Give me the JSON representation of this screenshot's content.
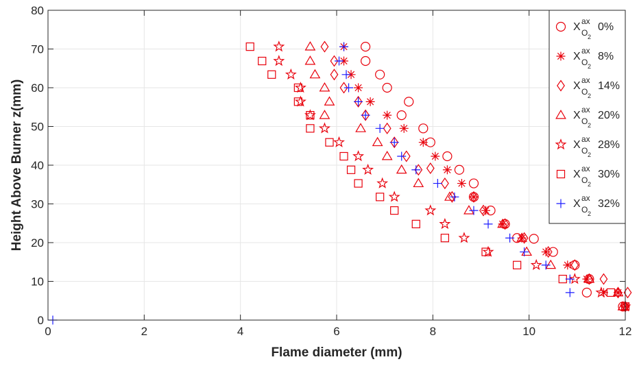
{
  "chart_data": {
    "type": "scatter",
    "xlabel": "Flame diameter (mm)",
    "ylabel": "Height Above Burner z(mm)",
    "xlim": [
      0,
      12
    ],
    "ylim": [
      0,
      80
    ],
    "xticks": [
      "0",
      "2",
      "4",
      "6",
      "8",
      "10",
      "12"
    ],
    "yticks": [
      "0",
      "10",
      "20",
      "30",
      "40",
      "50",
      "60",
      "70",
      "80"
    ],
    "grid": true,
    "legend_position": "top-right",
    "legend_symbol_base": "X",
    "legend_symbol_sup": "ax",
    "legend_symbol_sub": "O",
    "legend_symbol_sub2": "2",
    "series": [
      {
        "name": "0%",
        "marker": "circle",
        "color": "#e8000b",
        "points": [
          [
            6.6,
            70.6
          ],
          [
            6.6,
            66.9
          ],
          [
            6.9,
            63.4
          ],
          [
            7.05,
            60
          ],
          [
            7.5,
            56.4
          ],
          [
            7.35,
            52.9
          ],
          [
            7.8,
            49.5
          ],
          [
            7.95,
            45.9
          ],
          [
            8.3,
            42.3
          ],
          [
            8.55,
            38.8
          ],
          [
            8.85,
            35.3
          ],
          [
            8.85,
            31.8
          ],
          [
            9.2,
            28.3
          ],
          [
            9.5,
            24.8
          ],
          [
            9.75,
            21.2
          ],
          [
            10.1,
            21
          ],
          [
            10.5,
            17.6
          ],
          [
            10.95,
            14.2
          ],
          [
            11.25,
            10.6
          ],
          [
            11.2,
            7.1
          ],
          [
            11.95,
            3.5
          ]
        ]
      },
      {
        "name": "8%",
        "marker": "asterisk",
        "color": "#e8000b",
        "points": [
          [
            6.15,
            70.6
          ],
          [
            6.15,
            66.9
          ],
          [
            6.3,
            63.4
          ],
          [
            6.45,
            60
          ],
          [
            6.7,
            56.4
          ],
          [
            7.05,
            52.9
          ],
          [
            7.4,
            49.5
          ],
          [
            7.8,
            45.9
          ],
          [
            8.05,
            42.3
          ],
          [
            8.3,
            38.8
          ],
          [
            8.6,
            35.3
          ],
          [
            8.85,
            31.8
          ],
          [
            9.1,
            28.3
          ],
          [
            9.45,
            24.8
          ],
          [
            9.85,
            21.2
          ],
          [
            10.35,
            17.6
          ],
          [
            10.8,
            14.2
          ],
          [
            11.2,
            10.6
          ],
          [
            11.55,
            7.1
          ],
          [
            11.85,
            7.1
          ],
          [
            12,
            3.5
          ]
        ]
      },
      {
        "name": "14%",
        "marker": "diamond",
        "color": "#e8000b",
        "points": [
          [
            5.75,
            70.6
          ],
          [
            5.95,
            66.9
          ],
          [
            5.95,
            63.4
          ],
          [
            6.15,
            60
          ],
          [
            6.45,
            56.4
          ],
          [
            6.6,
            52.9
          ],
          [
            7.05,
            49.5
          ],
          [
            7.2,
            45.9
          ],
          [
            7.45,
            42.3
          ],
          [
            7.7,
            38.8
          ],
          [
            7.95,
            39.2
          ],
          [
            8.25,
            35.3
          ],
          [
            8.4,
            31.8
          ],
          [
            8.85,
            31.8
          ],
          [
            9.05,
            28.3
          ],
          [
            9.5,
            24.8
          ],
          [
            9.9,
            21.2
          ],
          [
            10.4,
            17.6
          ],
          [
            10.95,
            14.2
          ],
          [
            11.25,
            10.6
          ],
          [
            11.55,
            10.6
          ],
          [
            11.85,
            7.1
          ],
          [
            12.05,
            7.1
          ],
          [
            12,
            3.5
          ]
        ]
      },
      {
        "name": "20%",
        "marker": "triangle",
        "color": "#e8000b",
        "points": [
          [
            5.45,
            70.6
          ],
          [
            5.45,
            66.9
          ],
          [
            5.55,
            63.4
          ],
          [
            5.75,
            60
          ],
          [
            5.85,
            56.4
          ],
          [
            5.75,
            52.9
          ],
          [
            6.5,
            49.5
          ],
          [
            6.85,
            45.9
          ],
          [
            7.05,
            42.3
          ],
          [
            7.35,
            38.8
          ],
          [
            7.7,
            35.3
          ],
          [
            8.35,
            31.8
          ],
          [
            8.75,
            28.3
          ],
          [
            9.45,
            24.8
          ],
          [
            9.85,
            21.2
          ],
          [
            9.95,
            17.6
          ],
          [
            10.45,
            14.2
          ],
          [
            11.25,
            10.6
          ],
          [
            11.85,
            7.1
          ],
          [
            11.95,
            3.5
          ]
        ]
      },
      {
        "name": "28%",
        "marker": "star",
        "color": "#e8000b",
        "points": [
          [
            4.8,
            70.6
          ],
          [
            4.8,
            66.9
          ],
          [
            5.05,
            63.4
          ],
          [
            5.25,
            60
          ],
          [
            5.25,
            56.4
          ],
          [
            5.45,
            52.9
          ],
          [
            5.75,
            49.5
          ],
          [
            6.05,
            45.9
          ],
          [
            6.45,
            42.3
          ],
          [
            6.65,
            38.8
          ],
          [
            6.95,
            35.3
          ],
          [
            7.2,
            31.8
          ],
          [
            7.95,
            28.3
          ],
          [
            8.25,
            24.8
          ],
          [
            8.65,
            21.2
          ],
          [
            9.15,
            17.6
          ],
          [
            10.15,
            14.2
          ],
          [
            10.95,
            10.6
          ],
          [
            11.5,
            7.1
          ],
          [
            12,
            3.5
          ]
        ]
      },
      {
        "name": "30%",
        "marker": "square",
        "color": "#e8000b",
        "points": [
          [
            4.2,
            70.6
          ],
          [
            4.45,
            66.9
          ],
          [
            4.65,
            63.4
          ],
          [
            5.2,
            60
          ],
          [
            5.2,
            56.4
          ],
          [
            5.45,
            52.9
          ],
          [
            5.45,
            49.5
          ],
          [
            5.85,
            45.9
          ],
          [
            6.15,
            42.3
          ],
          [
            6.3,
            38.8
          ],
          [
            6.45,
            35.3
          ],
          [
            6.9,
            31.8
          ],
          [
            7.2,
            28.3
          ],
          [
            7.65,
            24.8
          ],
          [
            8.25,
            21.2
          ],
          [
            9.1,
            17.6
          ],
          [
            9.75,
            14.2
          ],
          [
            10.7,
            10.6
          ],
          [
            11.7,
            7.1
          ],
          [
            12,
            3.5
          ]
        ]
      },
      {
        "name": "32%",
        "marker": "plus",
        "color": "#1a1aff",
        "points": [
          [
            6.15,
            70.6
          ],
          [
            6.05,
            66.9
          ],
          [
            6.2,
            63.4
          ],
          [
            6.25,
            60
          ],
          [
            6.45,
            56.4
          ],
          [
            6.6,
            52.9
          ],
          [
            6.9,
            49.5
          ],
          [
            7.2,
            45.9
          ],
          [
            7.35,
            42.3
          ],
          [
            7.65,
            38.8
          ],
          [
            8.1,
            35.3
          ],
          [
            8.45,
            31.8
          ],
          [
            8.85,
            28.3
          ],
          [
            9.15,
            24.8
          ],
          [
            9.6,
            21.2
          ],
          [
            9.9,
            17.6
          ],
          [
            10.35,
            14.2
          ],
          [
            10.85,
            10.6
          ],
          [
            10.85,
            7.1
          ],
          [
            0.1,
            0
          ]
        ]
      }
    ]
  }
}
